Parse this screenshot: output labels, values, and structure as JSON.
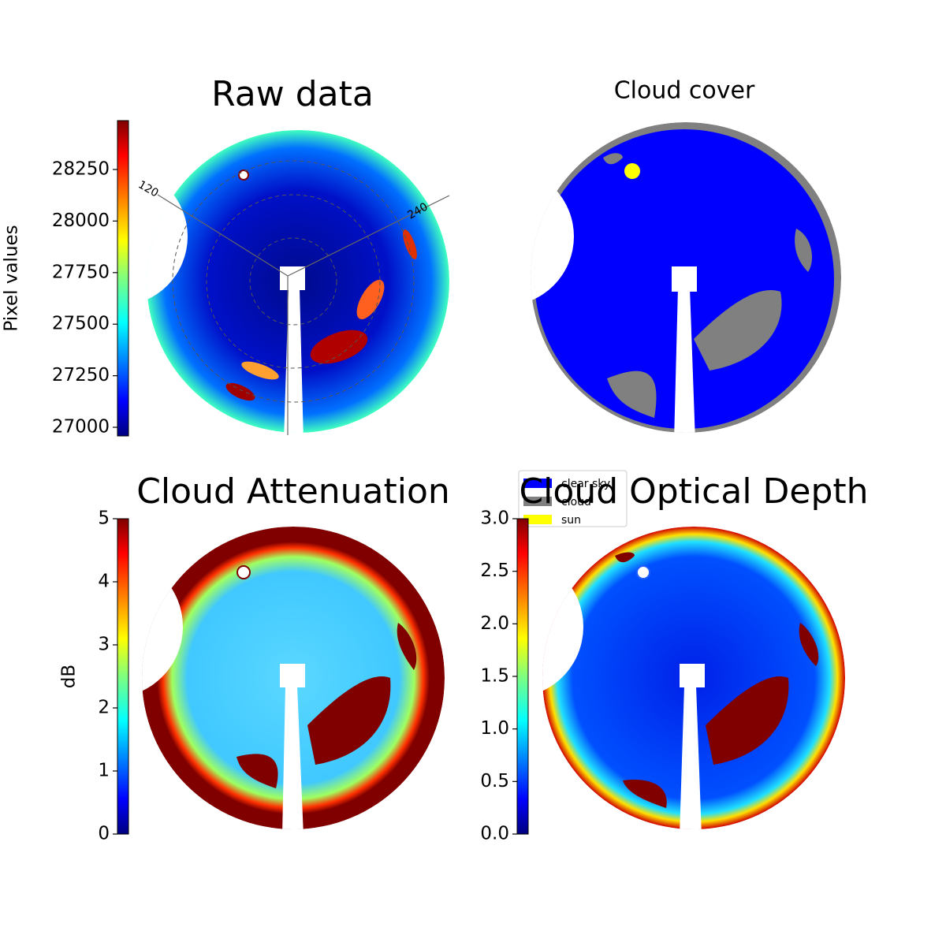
{
  "chart_data": [
    {
      "type": "image",
      "title": "Raw data",
      "colorbar": {
        "label": "Pixel values",
        "colormap": "jet",
        "lim": [
          26958,
          28487
        ],
        "ticks": [
          27000,
          27250,
          27500,
          27750,
          28000,
          28250
        ]
      },
      "annotations": [
        "120",
        "240"
      ]
    },
    {
      "type": "image",
      "title": "Cloud cover",
      "series": [
        {
          "name": "clear sky",
          "color": "#0000ff"
        },
        {
          "name": "cloud",
          "color": "#808080"
        },
        {
          "name": "sun",
          "color": "#ffff00"
        }
      ],
      "legend": "lower left"
    },
    {
      "type": "image",
      "title": "Cloud Attenuation",
      "colorbar": {
        "label": "dB",
        "colormap": "jet",
        "lim": [
          0,
          5
        ],
        "ticks": [
          0,
          1,
          2,
          3,
          4,
          5
        ]
      }
    },
    {
      "type": "image",
      "title": "Cloud Optical Depth",
      "colorbar": {
        "colormap": "jet",
        "lim": [
          0,
          3
        ],
        "ticks": [
          {
            "value": 0,
            "label": "0.0"
          },
          0.5,
          {
            "value": 1,
            "label": "1.0"
          },
          1.5,
          {
            "value": 2,
            "label": "2.0"
          },
          2.5,
          {
            "value": 3,
            "label": "3.0"
          }
        ]
      }
    }
  ]
}
